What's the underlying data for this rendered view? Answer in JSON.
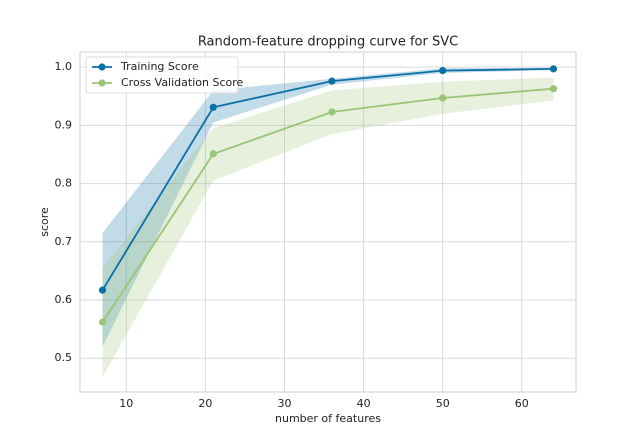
{
  "chart_data": {
    "type": "line",
    "title": "Random-feature dropping curve for SVC",
    "x_label": "number of features",
    "y_label": "score",
    "x": [
      7,
      21,
      36,
      50,
      64
    ],
    "series": [
      {
        "name": "Training Score",
        "color": "#0a70a6",
        "values": [
          0.617,
          0.931,
          0.976,
          0.994,
          0.997
        ],
        "lower": [
          0.52,
          0.905,
          0.97,
          0.99,
          0.995
        ],
        "upper": [
          0.715,
          0.96,
          0.98,
          0.998,
          0.999
        ]
      },
      {
        "name": "Cross Validation Score",
        "color": "#9ac575",
        "values": [
          0.562,
          0.851,
          0.923,
          0.947,
          0.963
        ],
        "lower": [
          0.468,
          0.805,
          0.885,
          0.92,
          0.943
        ],
        "upper": [
          0.655,
          0.895,
          0.96,
          0.975,
          0.982
        ]
      }
    ],
    "xlim": [
      4.15,
      66.85
    ],
    "ylim": [
      0.442,
      1.026
    ],
    "xticks": [
      10,
      20,
      30,
      40,
      50,
      60
    ],
    "yticks": [
      0.5,
      0.6,
      0.7,
      0.8,
      0.9,
      {
        "value": 1,
        "label": "1.0"
      }
    ],
    "grid": true,
    "legend": "upper-left"
  }
}
